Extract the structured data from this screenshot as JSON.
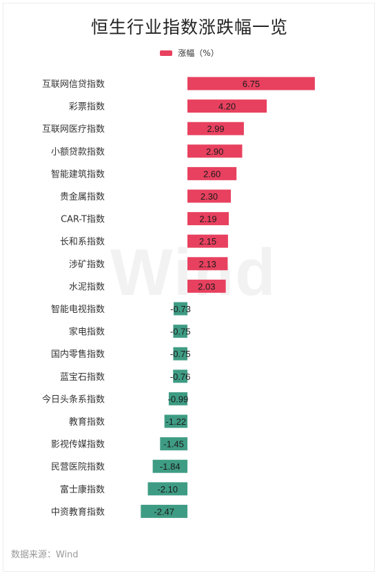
{
  "title": "恒生行业指数涨跌幅一览",
  "legend": {
    "label": "涨幅（%）"
  },
  "watermark": "Wind",
  "source": "数据来源：Wind",
  "colors": {
    "positive": "#e8415f",
    "negative": "#3f9c84"
  },
  "chart_data": {
    "type": "bar",
    "orientation": "horizontal",
    "title": "恒生行业指数涨跌幅一览",
    "categories": [
      "互联网信贷指数",
      "彩票指数",
      "互联网医疗指数",
      "小额贷款指数",
      "智能建筑指数",
      "贵金属指数",
      "CAR-T指数",
      "长和系指数",
      "涉矿指数",
      "水泥指数",
      "智能电视指数",
      "家电指数",
      "国内零售指数",
      "蓝宝石指数",
      "今日头条系指数",
      "教育指数",
      "影视传媒指数",
      "民营医院指数",
      "富士康指数",
      "中资教育指数"
    ],
    "series": [
      {
        "name": "涨幅（%）",
        "values": [
          6.75,
          4.2,
          2.99,
          2.9,
          2.6,
          2.3,
          2.19,
          2.15,
          2.13,
          2.03,
          -0.73,
          -0.75,
          -0.75,
          -0.76,
          -0.99,
          -1.22,
          -1.45,
          -1.84,
          -2.1,
          -2.47
        ]
      }
    ],
    "value_labels": [
      "6.75",
      "4.20",
      "2.99",
      "2.90",
      "2.60",
      "2.30",
      "2.19",
      "2.15",
      "2.13",
      "2.03",
      "-0.73",
      "-0.75",
      "-0.75",
      "-0.76",
      "-0.99",
      "-1.22",
      "-1.45",
      "-1.84",
      "-2.10",
      "-2.47"
    ],
    "legend_position": "top-center",
    "grid": false
  }
}
